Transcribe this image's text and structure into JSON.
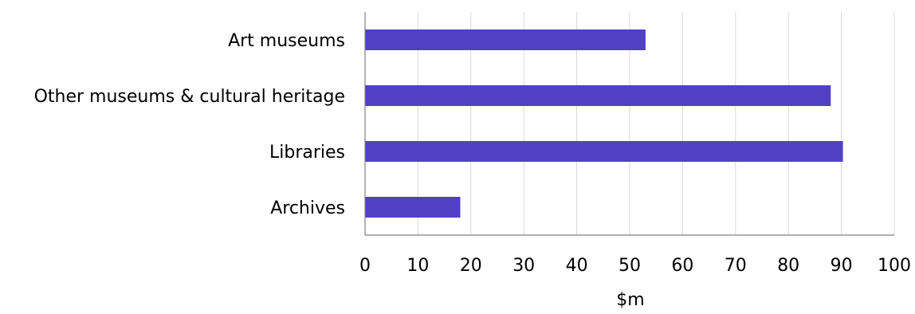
{
  "chart_data": {
    "type": "bar",
    "orientation": "horizontal",
    "title": "",
    "xlabel": "$m",
    "ylabel": "",
    "categories": [
      "Art museums",
      "Other museums & cultural heritage",
      "Libraries",
      "Archives"
    ],
    "values": [
      53,
      88,
      90.3,
      18
    ],
    "xlim": [
      0,
      100
    ],
    "xticks": [
      0,
      10,
      20,
      30,
      40,
      50,
      60,
      70,
      80,
      90,
      100
    ],
    "grid": "vertical",
    "legend": "none",
    "bar_color": "#5140C4",
    "gridline_color": "#d9d9d9",
    "axis_color": "#808080"
  }
}
